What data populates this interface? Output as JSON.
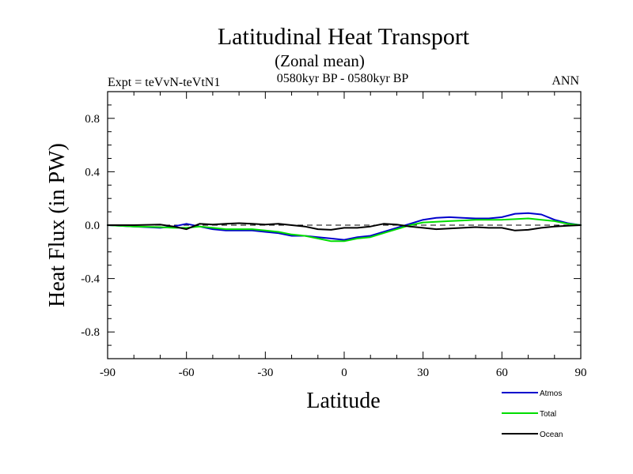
{
  "chart_data": {
    "type": "line",
    "title": "Latitudinal Heat Transport",
    "subtitle": "(Zonal mean)",
    "left_label": "Expt = teVvN-teVtN1",
    "center_label": "0580kyr BP - 0580kyr BP",
    "right_label": "ANN",
    "xlabel": "Latitude",
    "ylabel": "Heat Flux (in PW)",
    "xlim": [
      -90,
      90
    ],
    "ylim": [
      -1.0,
      1.0
    ],
    "xticks": [
      -90,
      -60,
      -30,
      0,
      30,
      60,
      90
    ],
    "xtick_labels": [
      "-90",
      "-60",
      "-30",
      "0",
      "30",
      "60",
      "90"
    ],
    "yticks": [
      -0.8,
      -0.4,
      0.0,
      0.4,
      0.8
    ],
    "ytick_labels": [
      "-0.8",
      "-0.4",
      "0.0",
      "0.4",
      "0.8"
    ],
    "zero_line": true,
    "grid": false,
    "legend_position": "bottom-right",
    "series": [
      {
        "name": "Atmos",
        "color": "#0000cc",
        "x": [
          -90,
          -80,
          -70,
          -65,
          -60,
          -55,
          -50,
          -45,
          -40,
          -35,
          -30,
          -25,
          -20,
          -15,
          -10,
          -5,
          0,
          5,
          10,
          15,
          20,
          25,
          30,
          35,
          40,
          45,
          50,
          55,
          60,
          65,
          70,
          75,
          80,
          85,
          90
        ],
        "y": [
          0.0,
          -0.01,
          -0.02,
          -0.01,
          0.01,
          -0.01,
          -0.03,
          -0.04,
          -0.04,
          -0.04,
          -0.05,
          -0.06,
          -0.08,
          -0.08,
          -0.09,
          -0.1,
          -0.11,
          -0.09,
          -0.08,
          -0.05,
          -0.02,
          0.01,
          0.04,
          0.055,
          0.06,
          0.055,
          0.05,
          0.05,
          0.06,
          0.085,
          0.09,
          0.08,
          0.04,
          0.015,
          0.0
        ]
      },
      {
        "name": "Total",
        "color": "#00dd00",
        "x": [
          -90,
          -80,
          -70,
          -65,
          -60,
          -55,
          -50,
          -45,
          -40,
          -35,
          -30,
          -25,
          -20,
          -15,
          -10,
          -5,
          0,
          5,
          10,
          15,
          20,
          25,
          30,
          35,
          40,
          45,
          50,
          55,
          60,
          65,
          70,
          75,
          80,
          85,
          90
        ],
        "y": [
          0.0,
          -0.01,
          -0.015,
          -0.02,
          -0.02,
          -0.01,
          -0.02,
          -0.03,
          -0.03,
          -0.03,
          -0.04,
          -0.05,
          -0.07,
          -0.08,
          -0.1,
          -0.12,
          -0.12,
          -0.1,
          -0.09,
          -0.06,
          -0.03,
          0.0,
          0.02,
          0.025,
          0.03,
          0.035,
          0.04,
          0.04,
          0.04,
          0.045,
          0.05,
          0.04,
          0.03,
          0.01,
          0.0
        ]
      },
      {
        "name": "Ocean",
        "color": "#000000",
        "x": [
          -90,
          -80,
          -70,
          -65,
          -60,
          -55,
          -50,
          -45,
          -40,
          -35,
          -30,
          -25,
          -20,
          -15,
          -10,
          -5,
          0,
          5,
          10,
          15,
          20,
          25,
          30,
          35,
          40,
          45,
          50,
          55,
          60,
          65,
          70,
          75,
          80,
          85,
          90
        ],
        "y": [
          0.0,
          0.0,
          0.005,
          -0.01,
          -0.03,
          0.01,
          0.005,
          0.01,
          0.015,
          0.01,
          0.005,
          0.01,
          0.0,
          -0.01,
          -0.03,
          -0.035,
          -0.02,
          -0.02,
          -0.01,
          0.01,
          0.005,
          -0.01,
          -0.02,
          -0.03,
          -0.025,
          -0.02,
          -0.015,
          -0.02,
          -0.02,
          -0.04,
          -0.035,
          -0.02,
          -0.01,
          -0.005,
          0.0
        ]
      }
    ]
  }
}
